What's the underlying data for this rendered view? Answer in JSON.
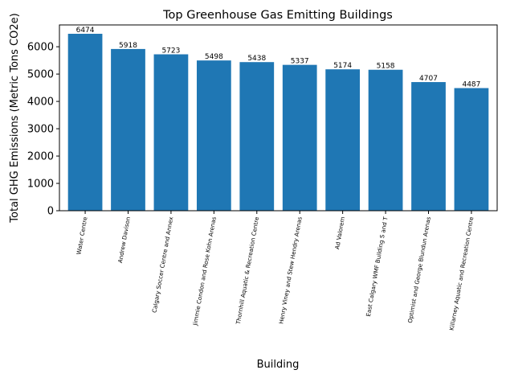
{
  "chart_data": {
    "type": "bar",
    "title": "Top Greenhouse Gas Emitting Buildings",
    "xlabel": "Building",
    "ylabel": "Total GHG Emissions (Metric Tons CO2e)",
    "categories": [
      "Water Centre",
      "Andrew Davison",
      "Calgary Soccer Centre and Annex",
      "Jimmie Condon and Rose Kohn Arenas",
      "Thornhill Aquatic & Recreation Centre",
      "Henry Viney and Stew Hendry Arenas",
      "Ad Valorem",
      "East Calgary WMF Building S and T",
      "Optimist and George Blundun Arenas",
      "Killarney Aquatic and Recreation Centre"
    ],
    "values": [
      6474,
      5918,
      5723,
      5498,
      5438,
      5337,
      5174,
      5158,
      4707,
      4487
    ],
    "ylim": [
      0,
      6798
    ],
    "yticks": [
      0,
      1000,
      2000,
      3000,
      4000,
      5000,
      6000
    ],
    "bar_color": "#1f77b4",
    "grid": false,
    "legend": "none"
  }
}
